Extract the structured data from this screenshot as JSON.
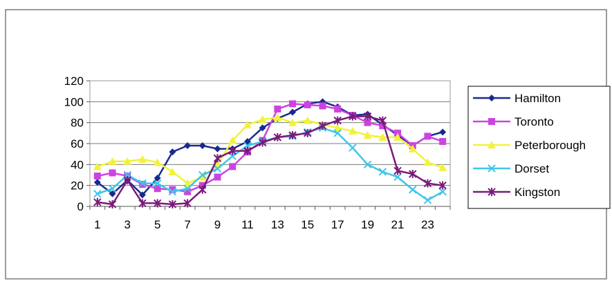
{
  "chart_data": {
    "type": "line",
    "title": "",
    "xlabel": "",
    "ylabel": "",
    "x": [
      1,
      2,
      3,
      4,
      5,
      6,
      7,
      8,
      9,
      10,
      11,
      12,
      13,
      14,
      15,
      16,
      17,
      18,
      19,
      20,
      21,
      22,
      23,
      24
    ],
    "x_tick_labels": [
      "1",
      "3",
      "5",
      "7",
      "9",
      "11",
      "13",
      "15",
      "17",
      "19",
      "21",
      "23"
    ],
    "x_tick_values": [
      1,
      3,
      5,
      7,
      9,
      11,
      13,
      15,
      17,
      19,
      21,
      23
    ],
    "ylim": [
      0,
      120
    ],
    "y_ticks": [
      0,
      20,
      40,
      60,
      80,
      100,
      120
    ],
    "grid": "horizontal",
    "legend_position": "right",
    "series": [
      {
        "name": "Hamilton",
        "color": "#1a2a8c",
        "marker": "diamond",
        "values": [
          23,
          12,
          25,
          11,
          27,
          52,
          58,
          58,
          55,
          55,
          62,
          75,
          84,
          90,
          98,
          100,
          95,
          87,
          88,
          78,
          68,
          58,
          67,
          71
        ]
      },
      {
        "name": "Toronto",
        "color": "#cc44e0",
        "marker": "square",
        "values": [
          29,
          32,
          29,
          21,
          17,
          16,
          14,
          20,
          28,
          38,
          52,
          63,
          93,
          98,
          97,
          96,
          93,
          87,
          80,
          77,
          70,
          58,
          67,
          62
        ]
      },
      {
        "name": "Peterborough",
        "color": "#f2f23a",
        "marker": "triangle",
        "values": [
          38,
          43,
          43,
          45,
          42,
          33,
          22,
          28,
          40,
          63,
          78,
          83,
          85,
          80,
          82,
          78,
          75,
          72,
          68,
          66,
          66,
          55,
          42,
          37
        ]
      },
      {
        "name": "Dorset",
        "color": "#3cc6e8",
        "marker": "x",
        "values": [
          12,
          17,
          30,
          22,
          22,
          14,
          17,
          30,
          36,
          48,
          58,
          62,
          66,
          67,
          71,
          75,
          70,
          56,
          40,
          33,
          28,
          16,
          6,
          14
        ]
      },
      {
        "name": "Kingston",
        "color": "#7a1a7a",
        "marker": "star",
        "values": [
          4,
          2,
          25,
          3,
          3,
          2,
          3,
          16,
          46,
          53,
          53,
          61,
          66,
          68,
          70,
          77,
          82,
          86,
          86,
          82,
          34,
          31,
          22,
          20
        ]
      }
    ]
  }
}
